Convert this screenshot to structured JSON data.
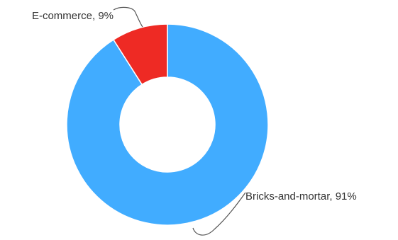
{
  "chart_data": {
    "type": "pie",
    "variant": "donut",
    "slices": [
      {
        "label": "E-commerce",
        "value": 9,
        "color": "#ee2a24"
      },
      {
        "label": "Bricks-and-mortar",
        "value": 91,
        "color": "#41acff"
      }
    ],
    "data_labels": [
      "E-commerce, 9%",
      "Bricks-and-mortar, 91%"
    ],
    "legend": "none",
    "title": ""
  }
}
